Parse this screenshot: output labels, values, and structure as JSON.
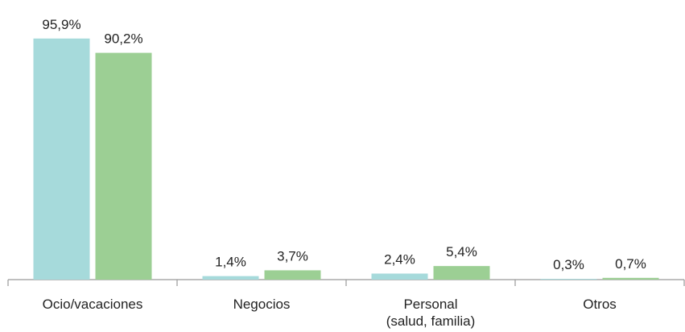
{
  "chart_data": {
    "type": "bar",
    "categories": [
      "Ocio/vacaciones",
      "Negocios",
      "Personal\n(salud, familia)",
      "Otros"
    ],
    "series": [
      {
        "color": "#a6dadb",
        "values": [
          95.9,
          1.4,
          2.4,
          0.3
        ],
        "value_labels": [
          "95,9%",
          "1,4%",
          "2,4%",
          "0,3%"
        ]
      },
      {
        "color": "#9ccf94",
        "values": [
          90.2,
          3.7,
          5.4,
          0.7
        ],
        "value_labels": [
          "90,2%",
          "3,7%",
          "5,4%",
          "0,7%"
        ]
      }
    ],
    "ylim": [
      0,
      100
    ]
  }
}
